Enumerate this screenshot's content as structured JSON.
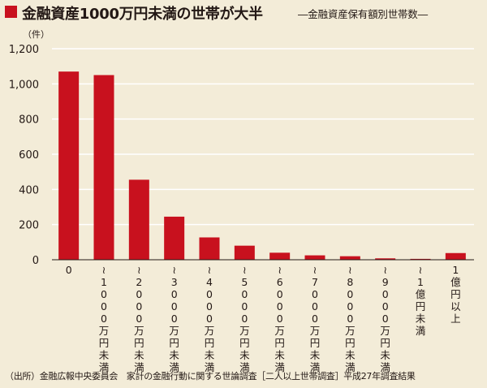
{
  "header": {
    "title": "金融資産1000万円未満の世帯が大半",
    "subtitle": "―金融資産保有額別世帯数―"
  },
  "footer": {
    "source": "（出所）金融広報中央委員会　家計の金融行動に関する世論調査［二人以上世帯調査］平成27年調査結果"
  },
  "colors": {
    "bar": "#c8111e",
    "background": "#f3ecd8",
    "grid": "#ffffff"
  },
  "chart_data": {
    "type": "bar",
    "title": "金融資産1000万円未満の世帯が大半",
    "subtitle": "―金融資産保有額別世帯数―",
    "unit_label": "（件）",
    "ylim": [
      0,
      1200
    ],
    "yticks": [
      0,
      200,
      400,
      600,
      800,
      1000,
      1200
    ],
    "ytick_labels": [
      "0",
      "200",
      "400",
      "600",
      "800",
      "1,000",
      "1,200"
    ],
    "grid": true,
    "categories": [
      "0",
      "～1000万円未満",
      "～2000万円未満",
      "～3000万円未満",
      "～4000万円未満",
      "～5000万円未満",
      "～6000万円未満",
      "～7000万円未満",
      "～8000万円未満",
      "～9000万円未満",
      "～1億円未満",
      "1億円以上"
    ],
    "values": [
      1070,
      1050,
      455,
      245,
      127,
      80,
      40,
      25,
      20,
      8,
      5,
      38
    ]
  }
}
